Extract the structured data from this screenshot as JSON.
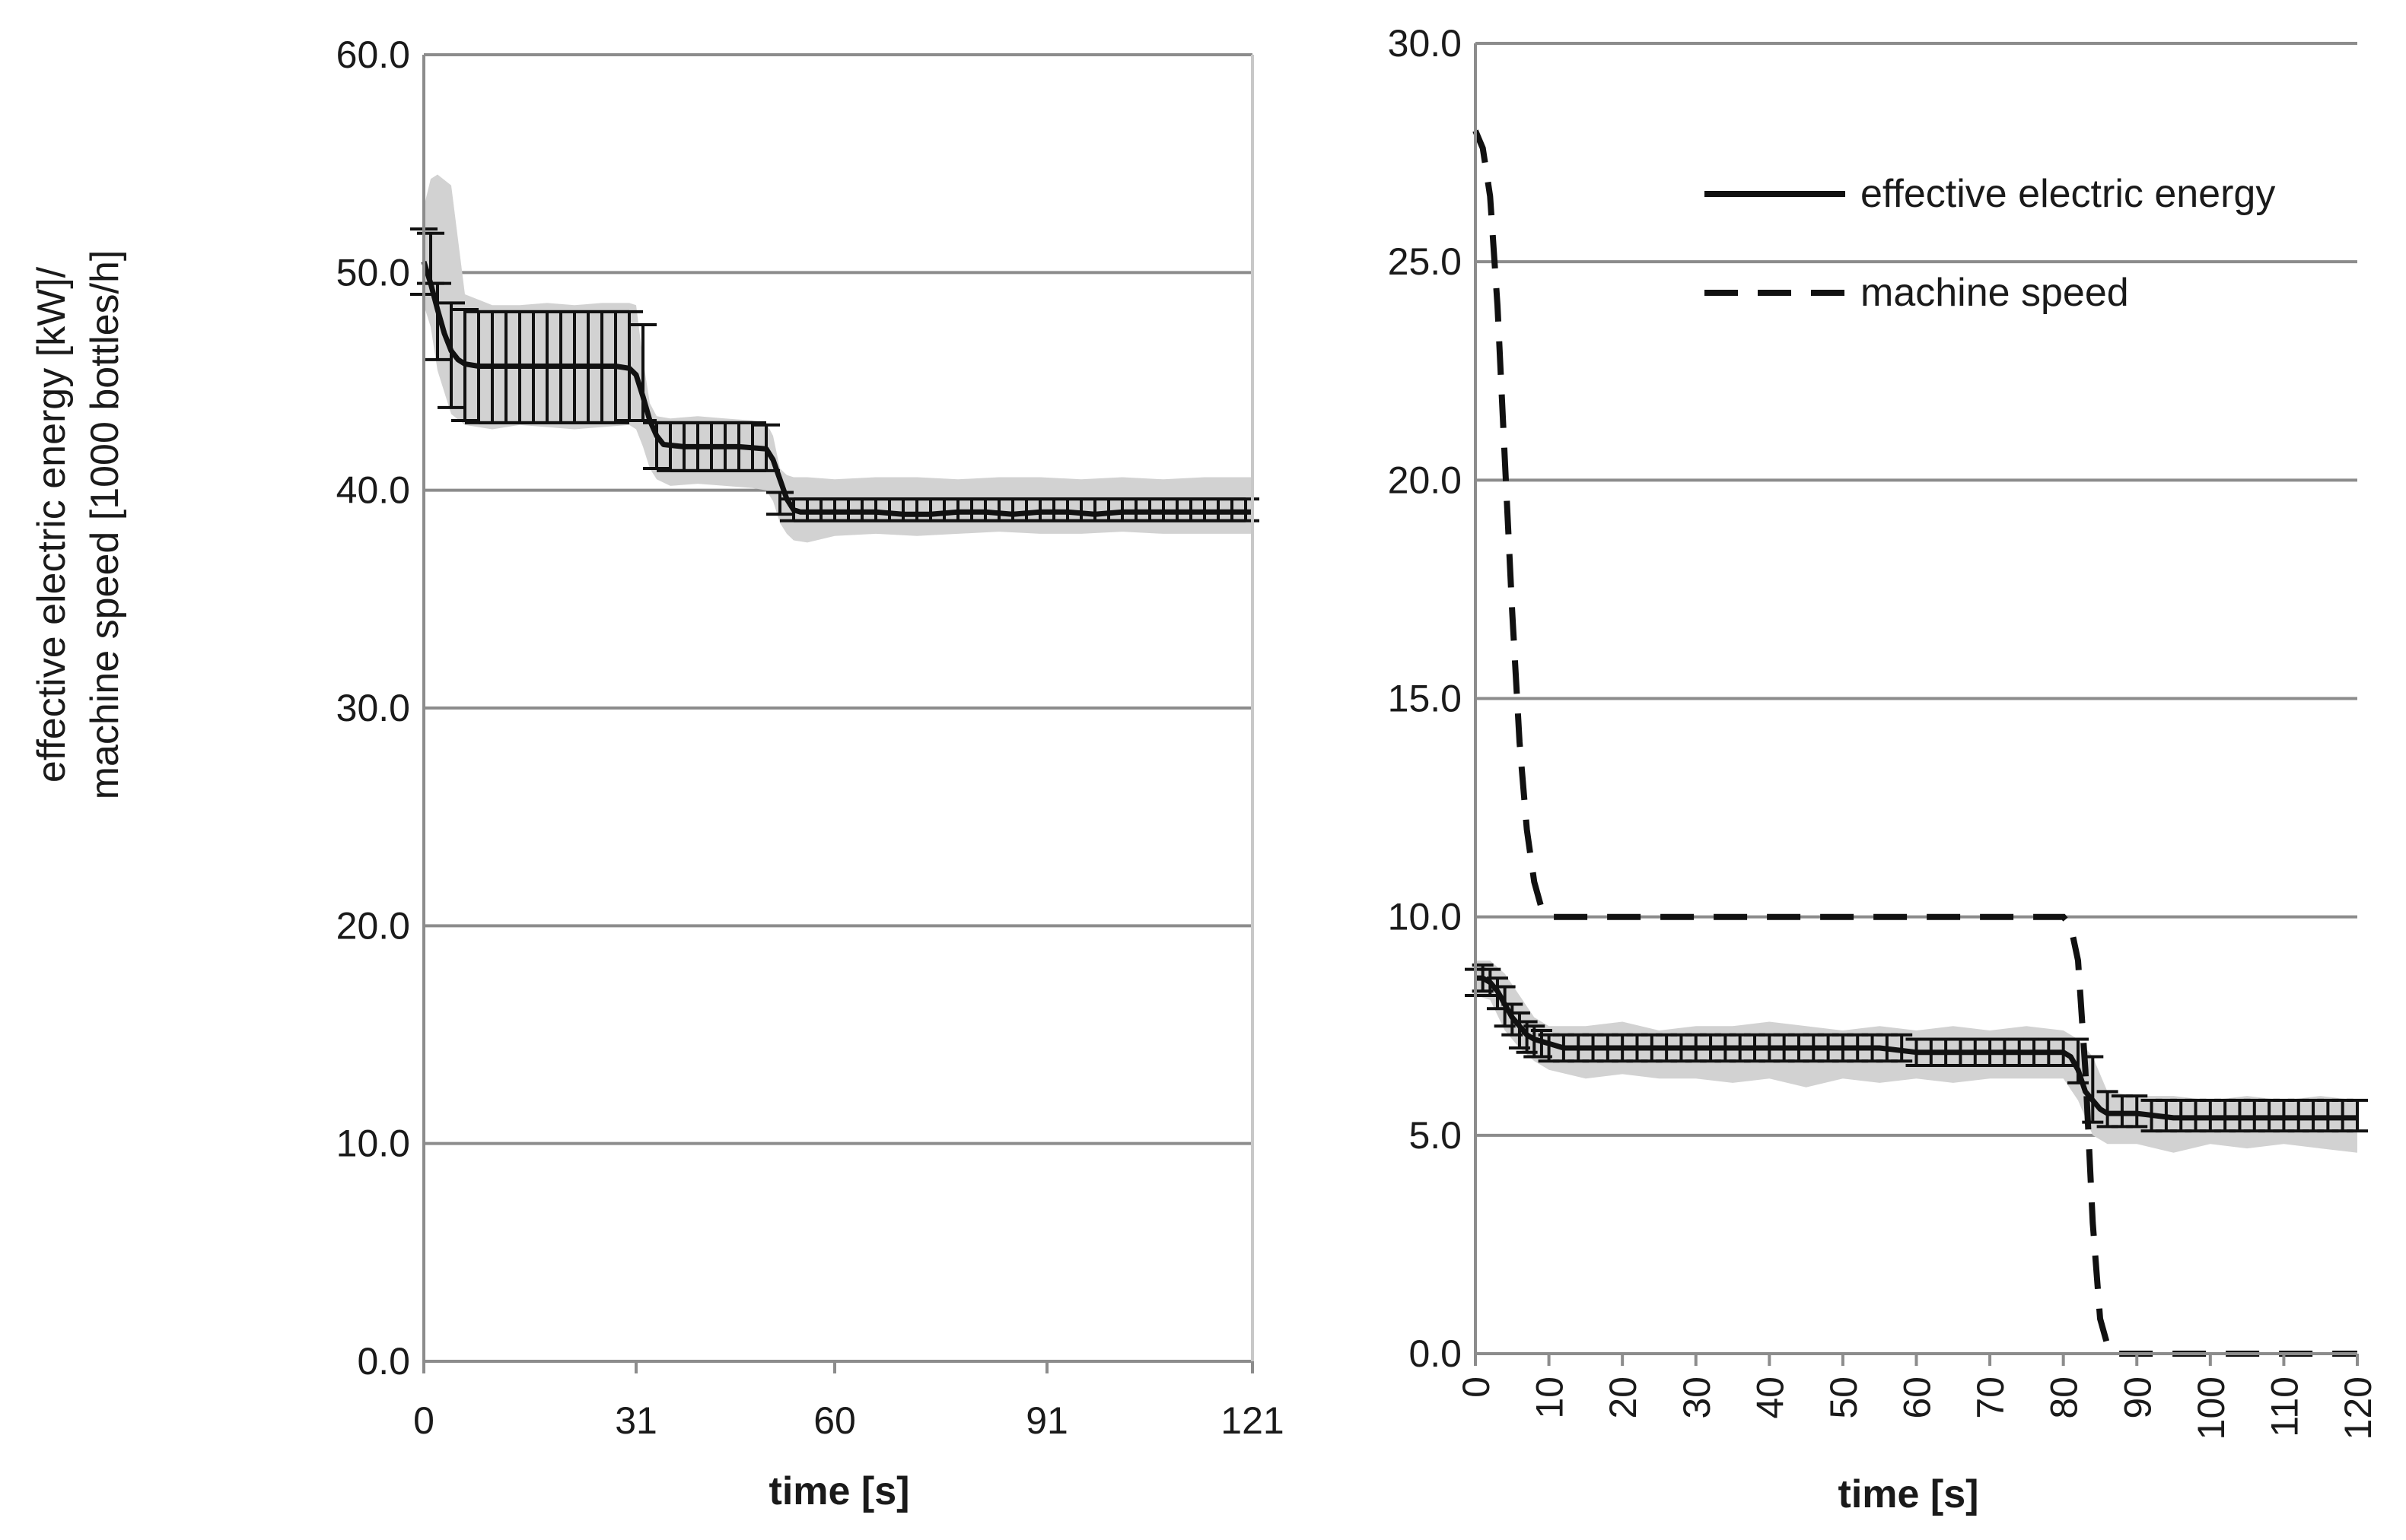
{
  "shared": {
    "ylabel_line1": "effective electric energy [kW]/",
    "ylabel_line2": "machine speed [1000 bottles/h]"
  },
  "chart_data": [
    {
      "type": "line",
      "title": "",
      "xlabel": "time [s]",
      "ylabel": "effective electric energy [kW]/ machine speed [1000 bottles/h]",
      "xlim": [
        0,
        121
      ],
      "ylim": [
        0,
        60
      ],
      "grid": true,
      "xtick_labels": [
        "0",
        "31",
        "60",
        "91",
        "121"
      ],
      "xtick_values": [
        0,
        31,
        60,
        91,
        121
      ],
      "ytick_labels": [
        "0.0",
        "10.0",
        "20.0",
        "30.0",
        "40.0",
        "50.0",
        "60.0"
      ],
      "ytick_values": [
        0,
        10,
        20,
        30,
        40,
        50,
        60
      ],
      "series": [
        {
          "name": "effective electric energy",
          "x": [
            0,
            1,
            2,
            3,
            4,
            5,
            6,
            8,
            12,
            16,
            20,
            24,
            28,
            30,
            31,
            32,
            33,
            34,
            35,
            38,
            42,
            46,
            50,
            51,
            52,
            53,
            54,
            55,
            58,
            62,
            66,
            70,
            74,
            78,
            82,
            86,
            90,
            94,
            98,
            102,
            106,
            110,
            114,
            118,
            121
          ],
          "values": [
            50.5,
            49.5,
            48.3,
            47.2,
            46.4,
            46.0,
            45.8,
            45.7,
            45.7,
            45.7,
            45.7,
            45.7,
            45.7,
            45.6,
            45.3,
            44.3,
            43.2,
            42.5,
            42.1,
            42.0,
            42.0,
            42.0,
            41.9,
            41.4,
            40.5,
            39.6,
            39.1,
            39.0,
            39.0,
            39.0,
            39.0,
            38.9,
            38.9,
            39.0,
            39.0,
            38.9,
            39.0,
            39.0,
            38.9,
            39.0,
            39.0,
            39.0,
            39.0,
            39.0,
            39.0
          ],
          "error_bars": {
            "x": [
              0,
              1,
              2,
              4,
              6,
              8,
              10,
              12,
              14,
              16,
              18,
              20,
              22,
              24,
              26,
              28,
              30,
              32,
              34,
              36,
              38,
              40,
              42,
              44,
              46,
              48,
              50,
              52,
              54,
              56,
              58,
              60,
              62,
              64,
              66,
              68,
              70,
              72,
              74,
              76,
              78,
              80,
              82,
              84,
              86,
              88,
              90,
              92,
              94,
              96,
              98,
              100,
              102,
              104,
              106,
              108,
              110,
              112,
              114,
              116,
              118,
              120
            ],
            "low": [
              49.0,
              49.5,
              46.0,
              43.8,
              43.2,
              43.1,
              43.1,
              43.1,
              43.1,
              43.1,
              43.1,
              43.1,
              43.1,
              43.1,
              43.1,
              43.1,
              43.2,
              43.2,
              41.0,
              40.9,
              40.9,
              40.9,
              40.9,
              40.9,
              40.9,
              40.9,
              40.9,
              38.9,
              38.6,
              38.6,
              38.6,
              38.6,
              38.6,
              38.6,
              38.6,
              38.6,
              38.6,
              38.6,
              38.6,
              38.6,
              38.6,
              38.6,
              38.6,
              38.6,
              38.6,
              38.6,
              38.6,
              38.6,
              38.6,
              38.6,
              38.6,
              38.6,
              38.6,
              38.6,
              38.6,
              38.6,
              38.6,
              38.6,
              38.6,
              38.6,
              38.6,
              38.6
            ],
            "high": [
              52.0,
              51.8,
              49.5,
              48.6,
              48.3,
              48.2,
              48.2,
              48.2,
              48.2,
              48.2,
              48.2,
              48.2,
              48.2,
              48.2,
              48.2,
              48.2,
              48.2,
              47.6,
              43.1,
              43.1,
              43.1,
              43.1,
              43.1,
              43.1,
              43.1,
              43.1,
              43.0,
              39.9,
              39.6,
              39.6,
              39.6,
              39.6,
              39.6,
              39.6,
              39.6,
              39.6,
              39.6,
              39.6,
              39.6,
              39.6,
              39.6,
              39.6,
              39.6,
              39.6,
              39.6,
              39.6,
              39.6,
              39.6,
              39.6,
              39.6,
              39.6,
              39.6,
              39.6,
              39.6,
              39.6,
              39.6,
              39.6,
              39.6,
              39.6,
              39.6,
              39.6,
              39.6
            ]
          },
          "range_band": {
            "x": [
              0,
              1,
              2,
              4,
              6,
              10,
              14,
              18,
              22,
              26,
              30,
              31,
              32,
              33,
              34,
              36,
              40,
              44,
              48,
              50,
              51,
              52,
              53,
              54,
              56,
              60,
              66,
              72,
              78,
              84,
              90,
              96,
              102,
              108,
              114,
              121
            ],
            "low": [
              48.5,
              47.5,
              45.5,
              43.5,
              43.0,
              42.8,
              43.0,
              42.9,
              42.8,
              42.9,
              43.0,
              42.8,
              42.0,
              41.0,
              40.5,
              40.2,
              40.3,
              40.2,
              40.1,
              40.0,
              39.5,
              38.5,
              38.0,
              37.7,
              37.6,
              37.9,
              38.0,
              37.9,
              38.0,
              38.1,
              38.0,
              38.0,
              38.1,
              38.0,
              38.0,
              38.0
            ],
            "high": [
              53.0,
              54.3,
              54.5,
              54.0,
              49.0,
              48.5,
              48.5,
              48.6,
              48.5,
              48.6,
              48.6,
              48.5,
              46.0,
              44.0,
              43.4,
              43.3,
              43.4,
              43.3,
              43.2,
              43.1,
              42.5,
              41.0,
              40.7,
              40.6,
              40.6,
              40.5,
              40.6,
              40.6,
              40.5,
              40.6,
              40.6,
              40.5,
              40.6,
              40.5,
              40.6,
              40.6
            ]
          }
        }
      ]
    },
    {
      "type": "line",
      "title": "",
      "xlabel": "time [s]",
      "ylabel": "",
      "xlim": [
        0,
        120
      ],
      "ylim": [
        0,
        30
      ],
      "grid": true,
      "xtick_labels": [
        "0",
        "10",
        "20",
        "30",
        "40",
        "50",
        "60",
        "70",
        "80",
        "90",
        "100",
        "110",
        "120"
      ],
      "xtick_values": [
        0,
        10,
        20,
        30,
        40,
        50,
        60,
        70,
        80,
        90,
        100,
        110,
        120
      ],
      "ytick_labels": [
        "0.0",
        "5.0",
        "10.0",
        "15.0",
        "20.0",
        "25.0",
        "30.0"
      ],
      "ytick_values": [
        0,
        5,
        10,
        15,
        20,
        25,
        30
      ],
      "legend": {
        "position": "top-right",
        "entries": [
          "effective electric energy",
          "machine speed"
        ]
      },
      "series": [
        {
          "name": "effective electric energy",
          "style": "solid",
          "x": [
            0,
            1,
            2,
            3,
            4,
            5,
            6,
            7,
            8,
            10,
            12,
            15,
            20,
            25,
            30,
            35,
            40,
            45,
            50,
            55,
            60,
            65,
            70,
            75,
            80,
            81,
            82,
            83,
            84,
            85,
            86,
            88,
            90,
            95,
            100,
            105,
            110,
            115,
            120
          ],
          "values": [
            8.6,
            8.6,
            8.5,
            8.3,
            8.0,
            7.7,
            7.5,
            7.3,
            7.2,
            7.1,
            7.0,
            7.0,
            7.0,
            7.0,
            7.0,
            7.0,
            7.0,
            7.0,
            7.0,
            7.0,
            6.9,
            6.9,
            6.9,
            6.9,
            6.9,
            6.8,
            6.5,
            6.0,
            5.8,
            5.6,
            5.5,
            5.5,
            5.5,
            5.4,
            5.4,
            5.4,
            5.4,
            5.4,
            5.4
          ],
          "error_bars": {
            "x": [
              0,
              1,
              2,
              3,
              4,
              5,
              6,
              7,
              8,
              9,
              10,
              12,
              14,
              16,
              18,
              20,
              22,
              24,
              26,
              28,
              30,
              32,
              34,
              36,
              38,
              40,
              42,
              44,
              46,
              48,
              50,
              52,
              54,
              56,
              58,
              60,
              62,
              64,
              66,
              68,
              70,
              72,
              74,
              76,
              78,
              80,
              82,
              84,
              86,
              88,
              90,
              92,
              94,
              96,
              98,
              100,
              102,
              104,
              106,
              108,
              110,
              112,
              114,
              116,
              118,
              120
            ],
            "low": [
              8.2,
              8.3,
              8.2,
              7.9,
              7.5,
              7.3,
              7.0,
              6.9,
              6.8,
              6.8,
              6.7,
              6.7,
              6.7,
              6.7,
              6.7,
              6.7,
              6.7,
              6.7,
              6.7,
              6.7,
              6.7,
              6.7,
              6.7,
              6.7,
              6.7,
              6.7,
              6.7,
              6.7,
              6.7,
              6.7,
              6.7,
              6.7,
              6.7,
              6.7,
              6.7,
              6.6,
              6.6,
              6.6,
              6.6,
              6.6,
              6.6,
              6.6,
              6.6,
              6.6,
              6.6,
              6.6,
              6.2,
              5.3,
              5.2,
              5.2,
              5.2,
              5.1,
              5.1,
              5.1,
              5.1,
              5.1,
              5.1,
              5.1,
              5.1,
              5.1,
              5.1,
              5.1,
              5.1,
              5.1,
              5.1,
              5.1
            ],
            "high": [
              8.8,
              8.9,
              8.8,
              8.6,
              8.4,
              8.0,
              7.8,
              7.6,
              7.5,
              7.4,
              7.3,
              7.3,
              7.3,
              7.3,
              7.3,
              7.3,
              7.3,
              7.3,
              7.3,
              7.3,
              7.3,
              7.3,
              7.3,
              7.3,
              7.3,
              7.3,
              7.3,
              7.3,
              7.3,
              7.3,
              7.3,
              7.3,
              7.3,
              7.3,
              7.3,
              7.2,
              7.2,
              7.2,
              7.2,
              7.2,
              7.2,
              7.2,
              7.2,
              7.2,
              7.2,
              7.2,
              7.2,
              6.8,
              6.0,
              5.9,
              5.9,
              5.8,
              5.8,
              5.8,
              5.8,
              5.8,
              5.8,
              5.8,
              5.8,
              5.8,
              5.8,
              5.8,
              5.8,
              5.8,
              5.8,
              5.8
            ]
          },
          "range_band": {
            "x": [
              0,
              2,
              4,
              6,
              8,
              10,
              15,
              20,
              25,
              30,
              35,
              40,
              45,
              50,
              55,
              60,
              65,
              70,
              75,
              80,
              82,
              84,
              86,
              90,
              95,
              100,
              105,
              110,
              115,
              120
            ],
            "low": [
              8.2,
              8.1,
              7.4,
              7.0,
              6.7,
              6.5,
              6.3,
              6.4,
              6.3,
              6.3,
              6.2,
              6.3,
              6.1,
              6.3,
              6.2,
              6.3,
              6.2,
              6.3,
              6.3,
              6.3,
              5.8,
              5.0,
              4.8,
              4.8,
              4.6,
              4.8,
              4.7,
              4.8,
              4.7,
              4.6
            ],
            "high": [
              9.0,
              9.0,
              8.7,
              8.2,
              7.7,
              7.5,
              7.5,
              7.6,
              7.4,
              7.5,
              7.5,
              7.6,
              7.5,
              7.4,
              7.5,
              7.4,
              7.5,
              7.4,
              7.5,
              7.4,
              7.2,
              6.8,
              6.0,
              5.9,
              5.9,
              5.8,
              5.9,
              5.8,
              5.9,
              5.8
            ]
          }
        },
        {
          "name": "machine speed",
          "style": "dashed",
          "x": [
            0,
            1,
            2,
            3,
            4,
            5,
            6,
            7,
            8,
            9,
            10,
            12,
            80,
            81,
            82,
            83,
            84,
            85,
            86,
            87,
            90,
            120
          ],
          "values": [
            28.0,
            27.6,
            26.5,
            24.0,
            20.5,
            17.0,
            14.0,
            12.0,
            10.8,
            10.2,
            10.0,
            10.0,
            10.0,
            9.8,
            9.0,
            6.5,
            3.0,
            0.8,
            0.2,
            0.0,
            0.0,
            0.0
          ]
        }
      ]
    }
  ]
}
